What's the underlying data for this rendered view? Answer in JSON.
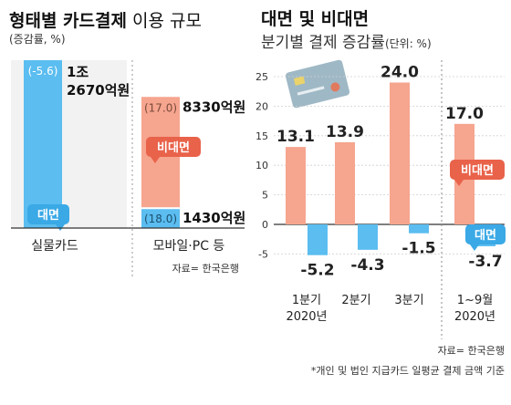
{
  "colors": {
    "in_person": "#5bbdf0",
    "non_face": "#f6a58f",
    "non_face_dark": "#e9624a",
    "in_person_dark": "#3aa9e6",
    "axis": "#333333",
    "grid": "#cfcfcf",
    "card": "#9fb8c5"
  },
  "icons": [
    "credit-card-icon"
  ],
  "left": {
    "title_bold": "형태별 카드결제",
    "title_rest": " 이용 규모",
    "subtitle": "(증감률, %)",
    "source": "자료= 한국은행",
    "chart_data": {
      "type": "stacked-bar",
      "categories": [
        "실물카드",
        "모바일·PC 등"
      ],
      "series": [
        {
          "name": "대면",
          "values": [
            12670,
            1430
          ],
          "rates": [
            "(-5.6)",
            "(18.0)"
          ],
          "amounts": [
            "1조\n2670억원",
            "1430억원"
          ]
        },
        {
          "name": "비대면",
          "values": [
            0,
            8330
          ],
          "rates": [
            "",
            "(17.0)"
          ],
          "amounts": [
            "",
            "8330억원"
          ]
        }
      ],
      "series_labels": [
        "대면",
        "비대면"
      ]
    }
  },
  "right": {
    "title": "대면 및 비대면",
    "subtitle_main": "분기별 결제 증감률",
    "subtitle_unit": "(단위: %)",
    "source": "자료= 한국은행",
    "footnote": "*개인 및 법인 지급카드 일평균 결제 금액 기준",
    "chart_data": {
      "type": "bar",
      "categories": [
        "1분기\n2020년",
        "2분기",
        "3분기",
        "1~9월\n2020년"
      ],
      "series": [
        {
          "name": "비대면",
          "values": [
            13.1,
            13.9,
            24.0,
            17.0
          ],
          "labels": [
            "13.1",
            "13.9",
            "24.0",
            "17.0"
          ]
        },
        {
          "name": "대면",
          "values": [
            -5.2,
            -4.3,
            -1.5,
            -3.7
          ],
          "labels": [
            "-5.2",
            "-4.3",
            "-1.5",
            "-3.7"
          ]
        }
      ],
      "ylim": [
        -5,
        25
      ],
      "yticks": [
        "25",
        "20",
        "15",
        "10",
        "5",
        "0",
        "-5"
      ],
      "series_labels": [
        "비대면",
        "대면"
      ],
      "grid": true
    }
  }
}
